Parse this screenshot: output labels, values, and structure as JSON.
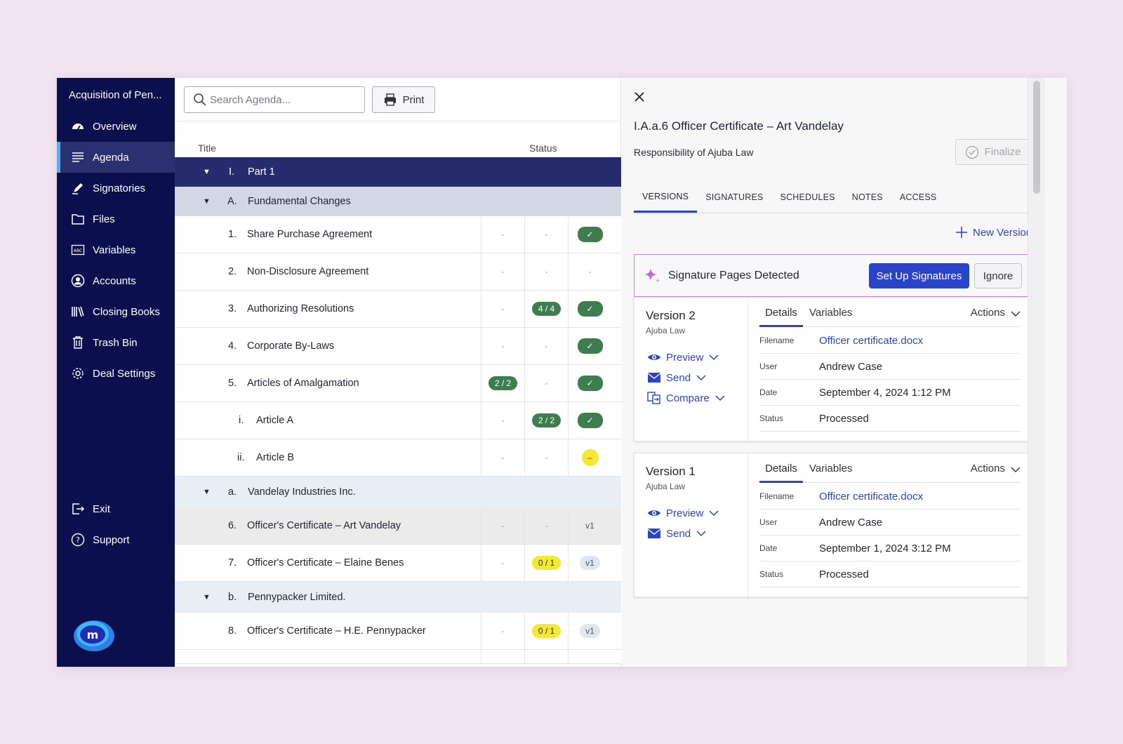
{
  "sidebar": {
    "deal_title": "Acquisition of Pen...",
    "items": [
      {
        "label": "Overview",
        "icon": "dashboard-icon"
      },
      {
        "label": "Agenda",
        "icon": "list-icon",
        "active": true
      },
      {
        "label": "Signatories",
        "icon": "pen-icon"
      },
      {
        "label": "Files",
        "icon": "folder-icon"
      },
      {
        "label": "Variables",
        "icon": "abc-icon"
      },
      {
        "label": "Accounts",
        "icon": "user-circle-icon"
      },
      {
        "label": "Closing Books",
        "icon": "books-icon"
      },
      {
        "label": "Trash Bin",
        "icon": "trash-icon"
      },
      {
        "label": "Deal Settings",
        "icon": "gear-icon"
      }
    ],
    "bottom_items": [
      {
        "label": "Exit",
        "icon": "exit-icon"
      },
      {
        "label": "Support",
        "icon": "help-icon"
      }
    ]
  },
  "agenda": {
    "search_placeholder": "Search Agenda...",
    "print_label": "Print",
    "columns": {
      "title": "Title",
      "status": "Status"
    },
    "rows": [
      {
        "num": "I.",
        "title": "Part 1",
        "type": "group-dark"
      },
      {
        "num": "A.",
        "title": "Fundamental Changes",
        "type": "group-light"
      },
      {
        "num": "1.",
        "title": "Share Purchase Agreement",
        "c1": "-",
        "c2": "-",
        "c3": "✓"
      },
      {
        "num": "2.",
        "title": "Non-Disclosure Agreement",
        "c1": "-",
        "c2": "-",
        "c3": "-"
      },
      {
        "num": "3.",
        "title": "Authorizing Resolutions",
        "c1": "-",
        "c2": "4 / 4",
        "c3": "✓"
      },
      {
        "num": "4.",
        "title": "Corporate By-Laws",
        "c1": "-",
        "c2": "-",
        "c3": "✓"
      },
      {
        "num": "5.",
        "title": "Articles of Amalgamation",
        "c1": "2 / 2",
        "c2": "-",
        "c3": "✓"
      },
      {
        "num": "i.",
        "title": "Article A",
        "c1": "-",
        "c2": "2 / 2",
        "c3": "✓"
      },
      {
        "num": "ii.",
        "title": "Article B",
        "c1": "-",
        "c2": "-",
        "c3": "–"
      },
      {
        "num": "a.",
        "title": "Vandelay Industries Inc.",
        "type": "group-pale"
      },
      {
        "num": "6.",
        "title": "Officer's Certificate – Art Vandelay",
        "c1": "-",
        "c2": "-",
        "c3": "v1"
      },
      {
        "num": "7.",
        "title": "Officer's Certificate – Elaine Benes",
        "c1": "-",
        "c2": "0 / 1",
        "c3": "v1"
      },
      {
        "num": "b.",
        "title": "Pennypacker Limited.",
        "type": "group-pale"
      },
      {
        "num": "8.",
        "title": "Officer's Certificate – H.E. Pennypacker",
        "c1": "-",
        "c2": "0 / 1",
        "c3": "v1"
      }
    ]
  },
  "detail": {
    "title": "I.A.a.6 Officer Certificate – Art Vandelay",
    "subtitle": "Responsibility of Ajuba Law",
    "finalize_label": "Finalize",
    "tabs": [
      "VERSIONS",
      "SIGNATURES",
      "SCHEDULES",
      "NOTES",
      "ACCESS"
    ],
    "new_version_label": "New Version",
    "banner": {
      "text": "Signature Pages Detected",
      "primary_label": "Set Up Signatures",
      "ignore_label": "Ignore"
    },
    "versions": [
      {
        "name": "Version 2",
        "firm": "Ajuba Law",
        "actions": [
          "Preview",
          "Send",
          "Compare"
        ],
        "tab_details": "Details",
        "tab_variables": "Variables",
        "actions_label": "Actions",
        "fields": [
          {
            "label": "Filename",
            "value": "Officer certificate.docx",
            "link": true
          },
          {
            "label": "User",
            "value": "Andrew Case"
          },
          {
            "label": "Date",
            "value": "September 4, 2024 1:12 PM"
          },
          {
            "label": "Status",
            "value": "Processed"
          }
        ]
      },
      {
        "name": "Version 1",
        "firm": "Ajuba Law",
        "actions": [
          "Preview",
          "Send"
        ],
        "tab_details": "Details",
        "tab_variables": "Variables",
        "actions_label": "Actions",
        "fields": [
          {
            "label": "Filename",
            "value": "Officer certificate.docx",
            "link": true
          },
          {
            "label": "User",
            "value": "Andrew Case"
          },
          {
            "label": "Date",
            "value": "September 1, 2024 3:12 PM"
          },
          {
            "label": "Status",
            "value": "Processed"
          }
        ]
      }
    ]
  },
  "colors": {
    "sidebar_bg": "#0b0f4e",
    "accent": "#2a44c9",
    "check_green": "#3e7d4f",
    "pending_yellow": "#f3e935"
  }
}
